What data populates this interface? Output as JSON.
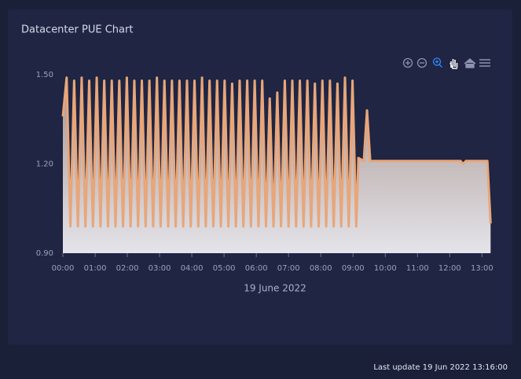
{
  "chart_data": {
    "type": "line",
    "title": "Datacenter PUE Chart",
    "x_label": "19 June 2022",
    "footer": "Last update 19 Jun 2022 13:16:00",
    "color": "#e8a679",
    "x": [
      0,
      7,
      14,
      21,
      28,
      35,
      42,
      49,
      56,
      63,
      70,
      77,
      84,
      91,
      98,
      105,
      112,
      119,
      126,
      133,
      140,
      147,
      154,
      161,
      168,
      175,
      182,
      189,
      196,
      203,
      210,
      217,
      224,
      231,
      238,
      245,
      252,
      259,
      266,
      273,
      280,
      287,
      294,
      301,
      308,
      315,
      322,
      329,
      336,
      343,
      350,
      357,
      364,
      371,
      378,
      385,
      392,
      399,
      406,
      413,
      420,
      427,
      434,
      441,
      448,
      455,
      462,
      469,
      476,
      483,
      490,
      497,
      504,
      511,
      518,
      525,
      532,
      539,
      546,
      550,
      560,
      566,
      572,
      740,
      745,
      750,
      790,
      796
    ],
    "values": [
      1.36,
      1.49,
      0.99,
      1.48,
      0.99,
      1.49,
      0.99,
      1.48,
      0.99,
      1.49,
      0.99,
      1.48,
      0.99,
      1.48,
      0.99,
      1.48,
      0.99,
      1.49,
      0.99,
      1.48,
      0.99,
      1.48,
      0.99,
      1.48,
      0.99,
      1.49,
      0.99,
      1.48,
      0.99,
      1.48,
      0.99,
      1.48,
      0.99,
      1.48,
      0.99,
      1.48,
      0.99,
      1.49,
      0.99,
      1.48,
      0.99,
      1.48,
      0.99,
      1.48,
      0.99,
      1.47,
      0.99,
      1.48,
      0.99,
      1.48,
      0.99,
      1.48,
      0.99,
      1.48,
      0.99,
      1.42,
      0.99,
      1.44,
      0.99,
      1.48,
      0.99,
      1.48,
      0.99,
      1.48,
      0.99,
      1.48,
      0.99,
      1.47,
      0.99,
      1.48,
      0.99,
      1.48,
      0.99,
      1.47,
      0.99,
      1.49,
      0.99,
      1.48,
      0.99,
      1.22,
      1.21,
      1.38,
      1.21,
      1.21,
      1.2,
      1.21,
      1.21,
      1.0
    ],
    "xlim": [
      0,
      797
    ],
    "xticks": [
      {
        "value": 0,
        "label": "00:00"
      },
      {
        "value": 60,
        "label": "01:00"
      },
      {
        "value": 120,
        "label": "02:00"
      },
      {
        "value": 180,
        "label": "03:00"
      },
      {
        "value": 240,
        "label": "04:00"
      },
      {
        "value": 300,
        "label": "05:00"
      },
      {
        "value": 360,
        "label": "06:00"
      },
      {
        "value": 420,
        "label": "07:00"
      },
      {
        "value": 480,
        "label": "08:00"
      },
      {
        "value": 540,
        "label": "09:00"
      },
      {
        "value": 600,
        "label": "10:00"
      },
      {
        "value": 660,
        "label": "11:00"
      },
      {
        "value": 720,
        "label": "12:00"
      },
      {
        "value": 780,
        "label": "13:00"
      }
    ],
    "ylim": [
      0.9,
      1.5
    ],
    "yticks": [
      {
        "value": 0.9,
        "label": "0.90"
      },
      {
        "value": 1.2,
        "label": "1.20"
      },
      {
        "value": 1.5,
        "label": "1.50"
      }
    ]
  }
}
